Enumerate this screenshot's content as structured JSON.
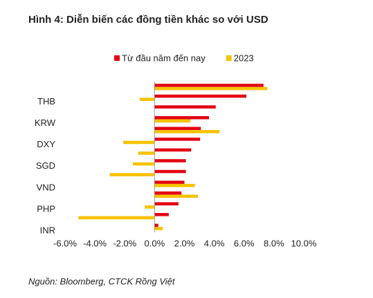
{
  "chart_data": {
    "type": "bar",
    "orientation": "horizontal",
    "title": "Hình 4: Diễn biến các đồng tiền khác so với USD",
    "source": "Nguồn: Bloomberg, CTCK Rồng Việt",
    "categories": [
      null,
      "THB",
      null,
      "KRW",
      null,
      "DXY",
      null,
      "SGD",
      null,
      "VND",
      null,
      "PHP",
      null,
      "INR"
    ],
    "series": [
      {
        "name": "Từ đầu năm đến nay",
        "color": "#e30613",
        "values": [
          7.3,
          6.15,
          4.1,
          3.65,
          3.1,
          3.05,
          2.45,
          2.1,
          2.1,
          2.0,
          1.8,
          1.6,
          0.95,
          0.25
        ]
      },
      {
        "name": "2023",
        "color": "#f7c200",
        "values": [
          7.55,
          -1.0,
          0,
          2.4,
          4.35,
          -2.1,
          -1.1,
          -1.45,
          -3.0,
          2.7,
          2.9,
          -0.65,
          -5.1,
          0.55
        ]
      }
    ],
    "xlim": [
      -6,
      10
    ],
    "xticks": [
      {
        "value": -6,
        "label": "-6.0%"
      },
      {
        "value": -4,
        "label": "-4.0%"
      },
      {
        "value": -2,
        "label": "-2.0%"
      },
      {
        "value": 0,
        "label": "0.0%"
      },
      {
        "value": 2,
        "label": "2.0%"
      },
      {
        "value": 4,
        "label": "4.0%"
      },
      {
        "value": 6,
        "label": "6.0%"
      },
      {
        "value": 8,
        "label": "8.0%"
      },
      {
        "value": 10,
        "label": "10.0%"
      }
    ],
    "legend": "top"
  }
}
